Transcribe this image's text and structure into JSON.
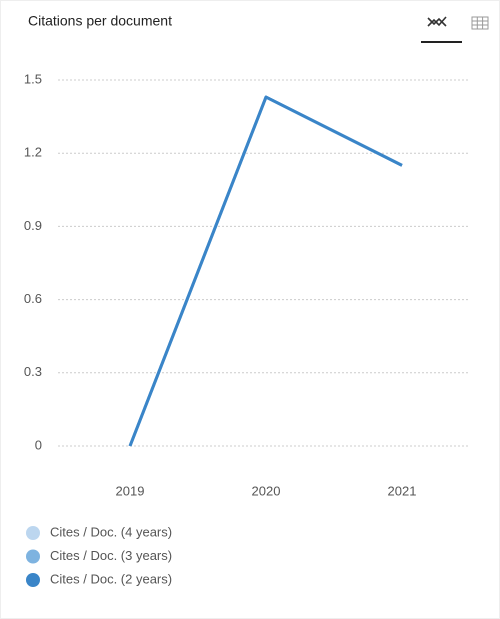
{
  "chart_data": {
    "type": "line",
    "title": "Citations per document",
    "categories": [
      "2019",
      "2020",
      "2021"
    ],
    "series": [
      {
        "name": "Cites / Doc. (4 years)",
        "color": "#bcd6ef",
        "values": [
          0,
          1.43,
          1.15
        ]
      },
      {
        "name": "Cites / Doc. (3 years)",
        "color": "#7eb3e0",
        "values": [
          0,
          1.43,
          1.15
        ]
      },
      {
        "name": "Cites / Doc. (2 years)",
        "color": "#3a85c8",
        "values": [
          0,
          1.43,
          1.15
        ]
      }
    ],
    "ylim": [
      0,
      1.5
    ],
    "yticks": [
      0,
      0.3,
      0.6,
      0.9,
      1.2,
      1.5
    ],
    "grid": true
  }
}
